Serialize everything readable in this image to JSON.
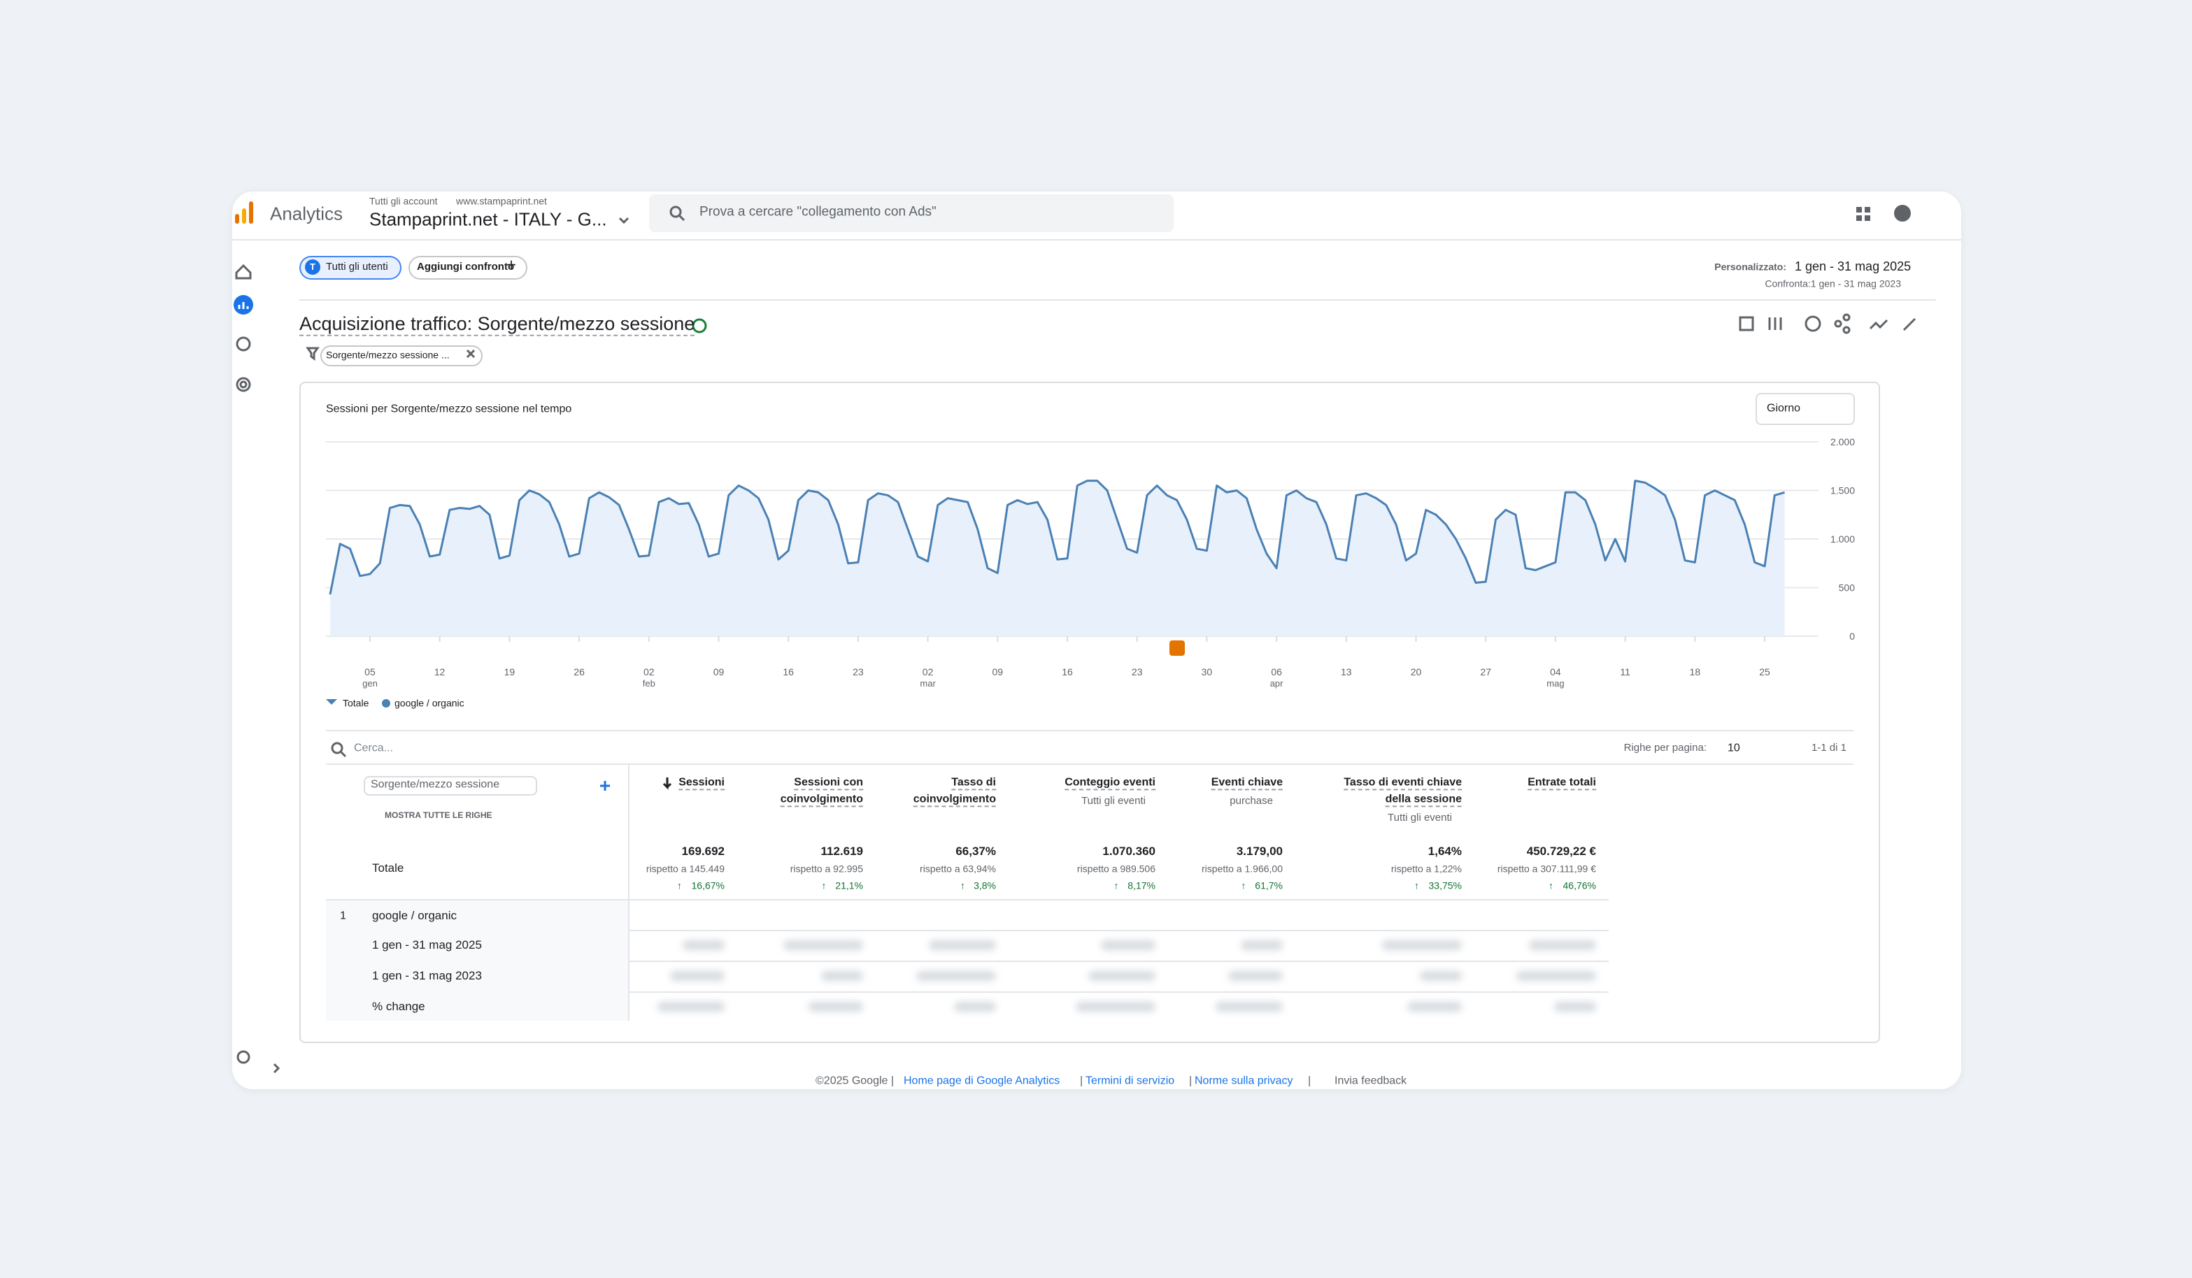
{
  "header": {
    "brand": "Analytics",
    "breadcrumb_1": "Tutti gli account",
    "breadcrumb_2": "www.stampaprint.net",
    "property": "Stampaprint.net - ITALY - G...",
    "search_placeholder": "Prova a cercare \"collegamento con Ads\""
  },
  "toolbar": {
    "segment_badge": "T",
    "segment": "Tutti gli utenti",
    "add_compare": "Aggiungi confronto",
    "date_label": "Personalizzato:",
    "date_range": "1 gen - 31 mag 2025",
    "compare": "Confronta:1 gen - 31 mag 2023"
  },
  "report": {
    "title": "Acquisizione traffico: Sorgente/mezzo sessione",
    "filter": "Sorgente/mezzo sessione ..."
  },
  "chart_data": {
    "type": "line",
    "title": "Sessioni per Sorgente/mezzo sessione nel tempo",
    "granularity": "Giorno",
    "legend_total": "Totale",
    "series": [
      {
        "name": "google / organic",
        "color": "#4a80b4",
        "values": [
          430,
          950,
          900,
          620,
          640,
          750,
          1320,
          1350,
          1340,
          1150,
          820,
          840,
          1300,
          1320,
          1310,
          1340,
          1250,
          800,
          830,
          1400,
          1500,
          1460,
          1380,
          1150,
          820,
          850,
          1420,
          1480,
          1430,
          1350,
          1100,
          820,
          830,
          1380,
          1420,
          1360,
          1370,
          1150,
          820,
          850,
          1450,
          1550,
          1500,
          1420,
          1200,
          790,
          880,
          1400,
          1500,
          1480,
          1400,
          1150,
          750,
          760,
          1400,
          1470,
          1450,
          1380,
          1100,
          820,
          770,
          1350,
          1420,
          1400,
          1380,
          1100,
          700,
          650,
          1350,
          1400,
          1360,
          1380,
          1200,
          790,
          800,
          1550,
          1600,
          1600,
          1500,
          1200,
          900,
          860,
          1450,
          1550,
          1450,
          1400,
          1200,
          900,
          880,
          1550,
          1480,
          1500,
          1420,
          1100,
          850,
          700,
          1450,
          1500,
          1420,
          1380,
          1150,
          800,
          780,
          1450,
          1470,
          1420,
          1350,
          1150,
          780,
          850,
          1300,
          1250,
          1150,
          1000,
          800,
          550,
          560,
          1200,
          1300,
          1250,
          700,
          680,
          720,
          760,
          1480,
          1480,
          1400,
          1150,
          780,
          1000,
          770,
          1600,
          1580,
          1520,
          1450,
          1200,
          780,
          760,
          1450,
          1500,
          1450,
          1400,
          1150,
          760,
          720,
          1450,
          1480
        ]
      }
    ],
    "xlim": [
      0,
      148
    ],
    "xticks": [
      {
        "value": 4,
        "label": "05",
        "sublabel": "gen"
      },
      {
        "value": 11,
        "label": "12"
      },
      {
        "value": 18,
        "label": "19"
      },
      {
        "value": 25,
        "label": "26"
      },
      {
        "value": 32,
        "label": "02",
        "sublabel": "feb"
      },
      {
        "value": 39,
        "label": "09"
      },
      {
        "value": 46,
        "label": "16"
      },
      {
        "value": 53,
        "label": "23"
      },
      {
        "value": 60,
        "label": "02",
        "sublabel": "mar"
      },
      {
        "value": 67,
        "label": "09"
      },
      {
        "value": 74,
        "label": "16"
      },
      {
        "value": 81,
        "label": "23"
      },
      {
        "value": 88,
        "label": "30"
      },
      {
        "value": 95,
        "label": "06",
        "sublabel": "apr"
      },
      {
        "value": 102,
        "label": "13"
      },
      {
        "value": 109,
        "label": "20"
      },
      {
        "value": 116,
        "label": "27"
      },
      {
        "value": 123,
        "label": "04",
        "sublabel": "mag"
      },
      {
        "value": 130,
        "label": "11"
      },
      {
        "value": 137,
        "label": "18"
      },
      {
        "value": 144,
        "label": "25"
      }
    ],
    "ylim": [
      0,
      2000
    ],
    "yticks": [
      0,
      500,
      {
        "value": 1000,
        "label": "1.000"
      },
      {
        "value": 1500,
        "label": "1.500"
      },
      {
        "value": 2000,
        "label": "2.000"
      }
    ],
    "grid": true
  },
  "table": {
    "search": "Cerca...",
    "rows_per_page_label": "Righe per pagina:",
    "rows_per_page": "10",
    "pagination": "1-1 di 1",
    "dimension": "Sorgente/mezzo sessione",
    "show_all": "MOSTRA TUTTE LE RIGHE",
    "total_label": "Totale",
    "columns": [
      {
        "name_lines": [
          "Sessioni"
        ],
        "total": "169.692",
        "compare": "rispetto a 145.449",
        "change": "16,67%"
      },
      {
        "name_lines": [
          "Sessioni con",
          "coinvolgimento"
        ],
        "total": "112.619",
        "compare": "rispetto a 92.995",
        "change": "21,1%"
      },
      {
        "name_lines": [
          "Tasso di",
          "coinvolgimento"
        ],
        "total": "66,37%",
        "compare": "rispetto a 63,94%",
        "change": "3,8%"
      },
      {
        "name_lines": [
          "Conteggio eventi"
        ],
        "sub": "Tutti gli eventi",
        "total": "1.070.360",
        "compare": "rispetto a 989.506",
        "change": "8,17%"
      },
      {
        "name_lines": [
          "Eventi chiave"
        ],
        "sub": "purchase",
        "total": "3.179,00",
        "compare": "rispetto a 1.966,00",
        "change": "61,7%"
      },
      {
        "name_lines": [
          "Tasso di eventi chiave",
          "della sessione"
        ],
        "sub": "Tutti gli eventi",
        "total": "1,64%",
        "compare": "rispetto a 1,22%",
        "change": "33,75%"
      },
      {
        "name_lines": [
          "Entrate totali"
        ],
        "total": "450.729,22 €",
        "compare": "rispetto a 307.111,99 €",
        "change": "46,76%"
      }
    ],
    "rows": [
      {
        "index": "1",
        "label": "google / organic",
        "subrows": [
          "1 gen - 31 mag 2025",
          "1 gen - 31 mag 2023",
          "% change"
        ]
      }
    ]
  },
  "footer": {
    "copyright": "©2025 Google |",
    "link_home": "Home page di Google Analytics",
    "sep1": "|",
    "link_terms": "Termini di servizio",
    "sep2": "|",
    "link_privacy": "Norme sulla privacy",
    "sep3": "|",
    "feedback": "Invia feedback"
  }
}
